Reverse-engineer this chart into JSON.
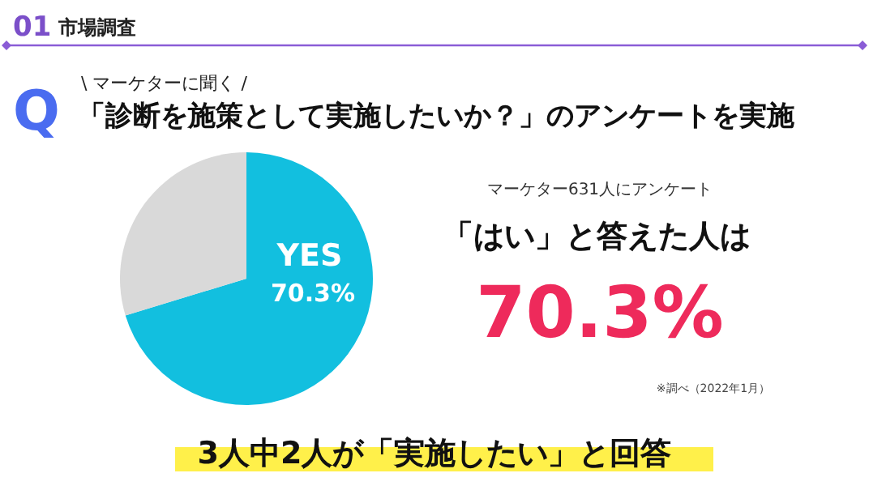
{
  "chart_data": {
    "type": "pie",
    "title": "「診断を施策として実施したいか？」のアンケートを実施",
    "subtitle": "\\ マーケターに聞く /",
    "categories": [
      "YES",
      null
    ],
    "values": [
      70.3,
      29.7
    ],
    "colors": [
      "#12bfdf",
      "#d9d9d9"
    ],
    "value_labels": [
      "70.3%",
      null
    ],
    "annotations": [
      "01",
      "市場調査",
      "Q",
      "マーケター631人にアンケート",
      "「はい」と答えた人は",
      "70.3%",
      "※調べ（2022年1月）",
      "3人中2人が「実施したい」と回答"
    ]
  }
}
